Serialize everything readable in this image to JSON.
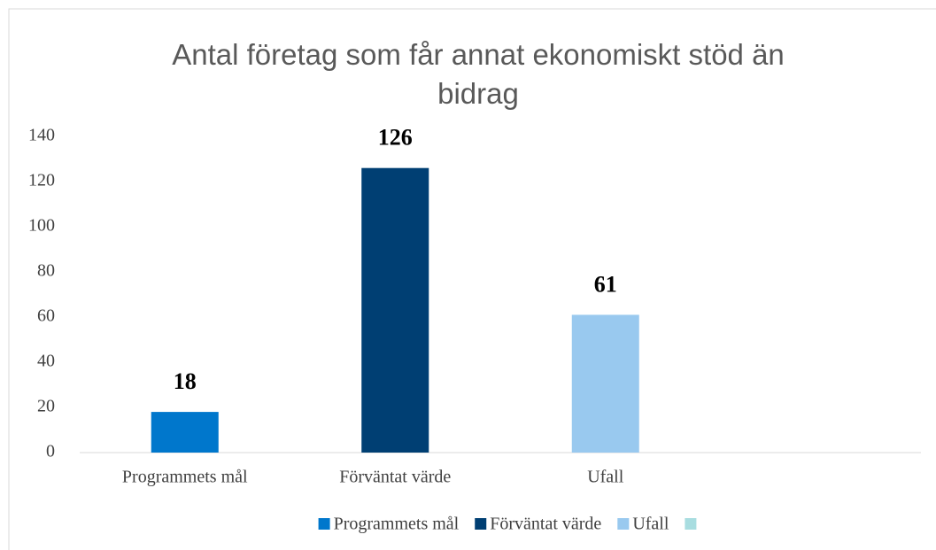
{
  "chart_data": {
    "type": "bar",
    "title": "Antal företag som får annat ekonomiskt stöd än bidrag",
    "categories": [
      "Programmets mål",
      "Förväntat värde",
      "Ufall",
      null
    ],
    "values": [
      18,
      126,
      61,
      null
    ],
    "colors": [
      "#0077cc",
      "#003f73",
      "#99c9ef",
      "#a8dde0"
    ],
    "ylim": [
      0,
      140
    ],
    "yticks": [
      0,
      20,
      40,
      60,
      80,
      100,
      120,
      140
    ],
    "grid": false,
    "legend": "bottom"
  }
}
